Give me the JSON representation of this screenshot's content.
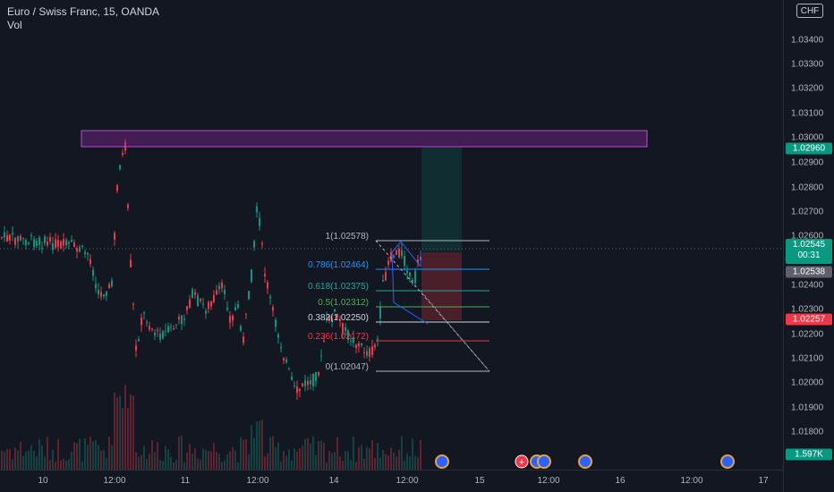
{
  "symbol": {
    "title": "Euro / Swiss Franc, 15, OANDA",
    "volume_label": "Vol"
  },
  "price_axis": {
    "currency": "CHF",
    "labels": [
      "1.03400",
      "1.03300",
      "1.03200",
      "1.03100",
      "1.03000",
      "1.02900",
      "1.02800",
      "1.02700",
      "1.02600",
      "1.02400",
      "1.02300",
      "1.02200",
      "1.02100",
      "1.02000",
      "1.01900",
      "1.01800"
    ],
    "tags": {
      "target": {
        "value": "1.02960",
        "color": "#089981"
      },
      "last": {
        "value": "1.02545",
        "countdown": "00:31",
        "color": "#089981"
      },
      "entry": {
        "value": "1.02538",
        "color": "#5d606b"
      },
      "stop": {
        "value": "1.02257",
        "color": "#f23645"
      },
      "volume": {
        "value": "1.597K",
        "color": "#089981"
      }
    }
  },
  "time_axis": {
    "labels": [
      "10",
      "12:00",
      "11",
      "12:00",
      "14",
      "12:00",
      "15",
      "12:00",
      "16",
      "12:00",
      "17"
    ]
  },
  "fibonacci": {
    "levels": [
      {
        "label": "1(1.02578)",
        "color": "#b2b5be"
      },
      {
        "label": "0.786(1.02464)",
        "color": "#2196f3"
      },
      {
        "label": "0.618(1.02375)",
        "color": "#26a69a"
      },
      {
        "label": "0.5(1.02312)",
        "color": "#4caf50"
      },
      {
        "label": "0.382(1.02250)",
        "color": "#d1d4dc"
      },
      {
        "label": "0.236(1.02172)",
        "color": "#f23645"
      },
      {
        "label": "0(1.02047)",
        "color": "#b2b5be"
      }
    ]
  },
  "colors": {
    "up": "#089981",
    "down": "#f23645",
    "zone": "#9c27b0",
    "background": "#131722"
  }
}
